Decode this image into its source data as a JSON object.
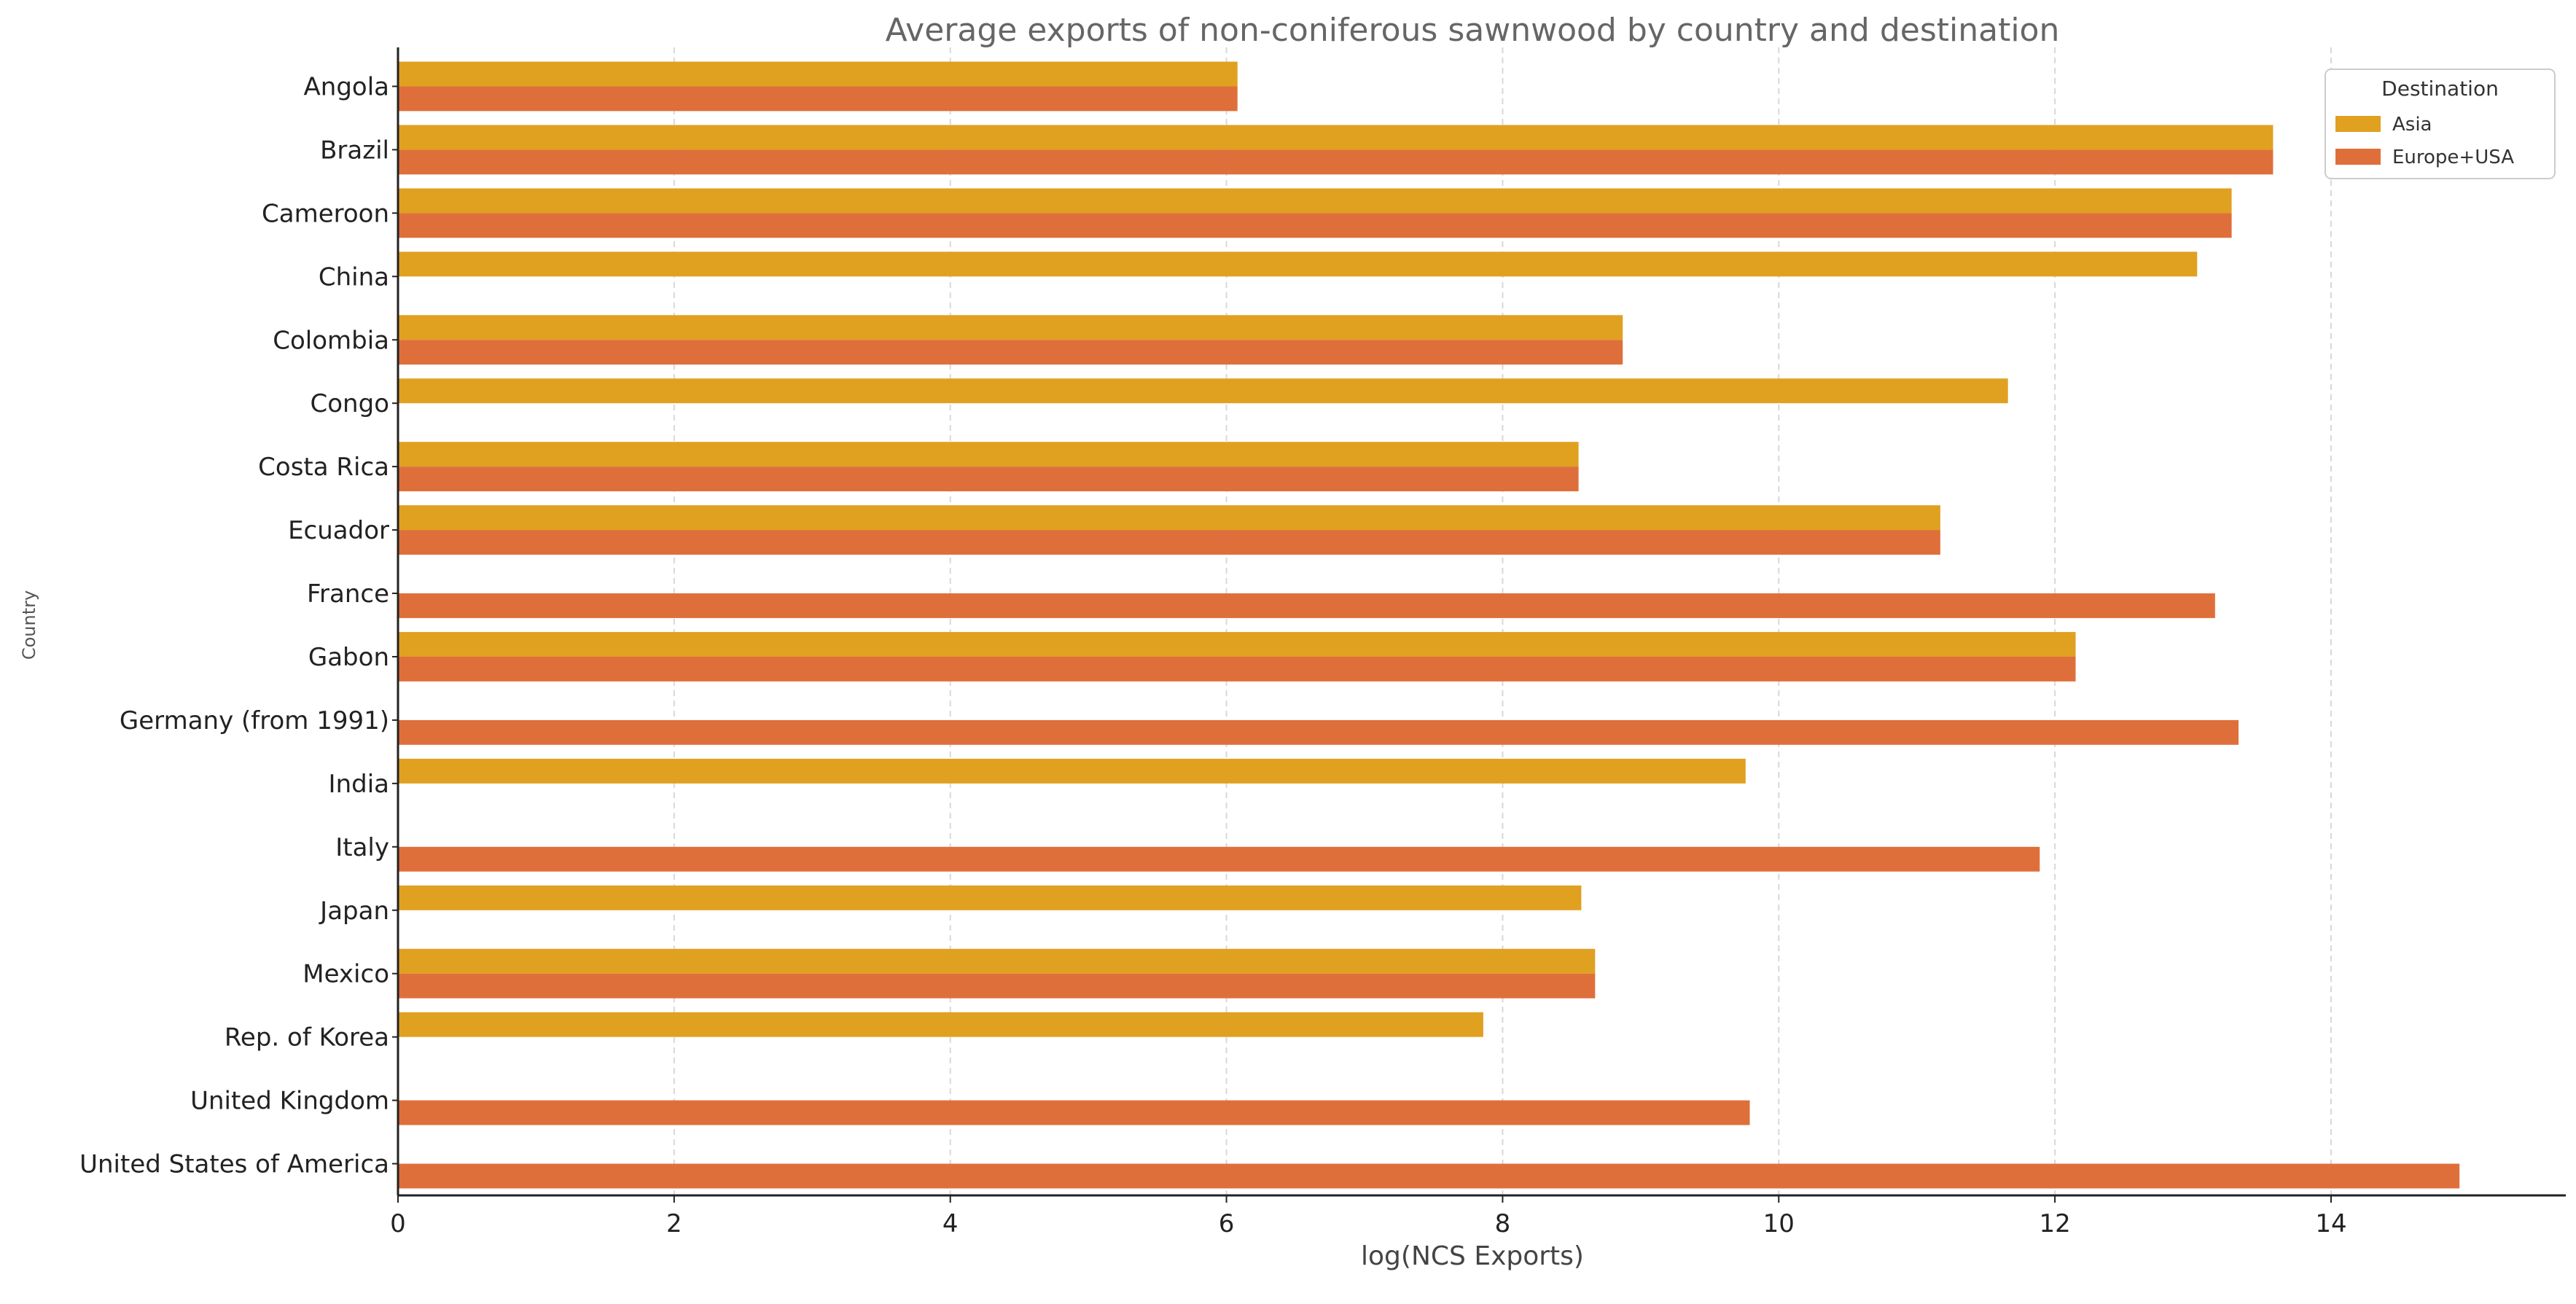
{
  "chart_data": {
    "type": "bar",
    "orientation": "horizontal",
    "title": "Average exports of non-coniferous sawnwood by country and destination",
    "xlabel": "log(NCS Exports)",
    "ylabel": "Country",
    "xlim": [
      0,
      15.7
    ],
    "xticks": [
      0,
      2,
      4,
      6,
      8,
      10,
      12,
      14
    ],
    "grid": "x-dashed",
    "legend": {
      "title": "Destination",
      "position": "top-right"
    },
    "categories": [
      "Angola",
      "Brazil",
      "Cameroon",
      "China",
      "Colombia",
      "Congo",
      "Costa Rica",
      "Ecuador",
      "France",
      "Gabon",
      "Germany (from 1991)",
      "India",
      "Italy",
      "Japan",
      "Mexico",
      "Rep. of Korea",
      "United Kingdom",
      "United States of America"
    ],
    "series": [
      {
        "name": "Asia",
        "color": "#E0A020",
        "values": [
          6.08,
          13.58,
          13.28,
          13.03,
          8.87,
          11.66,
          8.55,
          11.17,
          null,
          12.15,
          null,
          9.76,
          null,
          8.57,
          8.67,
          7.86,
          null,
          null
        ]
      },
      {
        "name": "Europe+USA",
        "color": "#DF6F3A",
        "values": [
          6.08,
          13.58,
          13.28,
          null,
          8.87,
          null,
          8.55,
          11.17,
          13.16,
          12.15,
          13.33,
          null,
          11.89,
          null,
          8.67,
          null,
          9.79,
          14.93
        ]
      }
    ]
  }
}
